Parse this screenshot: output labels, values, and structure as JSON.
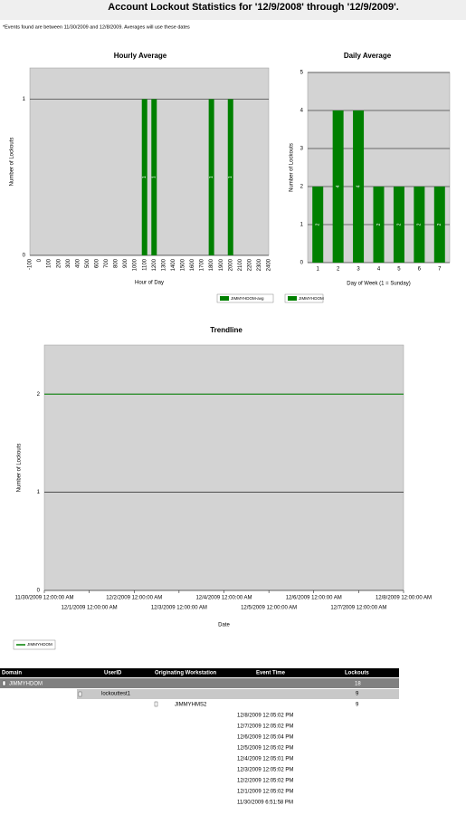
{
  "header": {
    "title": "Account Lockout Statistics for '12/9/2008' through '12/9/2009'.",
    "note": "*Events found are between 11/30/2009 and 12/8/2009. Averages will use these dates"
  },
  "chart_data": [
    {
      "type": "bar",
      "title": "Hourly Average",
      "x": [
        1100,
        1200,
        1800,
        2000
      ],
      "series": [
        {
          "name": "JIMMYHDOM-avg",
          "color": "#008000",
          "values": [
            1,
            1,
            1,
            1
          ]
        }
      ],
      "xlim": [
        -100,
        2400
      ],
      "xticks": [
        -100,
        0,
        100,
        200,
        300,
        400,
        500,
        600,
        700,
        800,
        900,
        1000,
        1100,
        1200,
        1300,
        1400,
        1500,
        1600,
        1700,
        1800,
        1900,
        2000,
        2100,
        2200,
        2300,
        2400
      ],
      "ylim": [
        0,
        1.2
      ],
      "yticks": [
        0,
        1
      ],
      "xlabel": "Hour of Day",
      "ylabel": "Number of Lockouts",
      "grid": true
    },
    {
      "type": "bar",
      "title": "Daily Average",
      "categories": [
        "1",
        "2",
        "3",
        "4",
        "5",
        "6",
        "7"
      ],
      "series": [
        {
          "name": "JIMMYHDOM",
          "color": "#008000",
          "values": [
            2,
            4,
            4,
            2,
            2,
            2,
            2
          ]
        }
      ],
      "ylim": [
        0,
        5
      ],
      "yticks": [
        0,
        1,
        2,
        3,
        4,
        5
      ],
      "xlabel": "Day of Week (1 = Sunday)",
      "ylabel": "Number of Lockouts",
      "grid": true
    },
    {
      "type": "line",
      "title": "Trendline",
      "categories": [
        "11/30/2009 12:00:00 AM",
        "12/1/2009 12:00:00 AM",
        "12/2/2009 12:00:00 AM",
        "12/3/2009 12:00:00 AM",
        "12/4/2009 12:00:00 AM",
        "12/5/2009 12:00:00 AM",
        "12/6/2009 12:00:00 AM",
        "12/7/2009 12:00:00 AM",
        "12/8/2009 12:00:00 AM"
      ],
      "series": [
        {
          "name": "JIMMYHDOM",
          "color": "#008000",
          "values": [
            2,
            2,
            2,
            2,
            2,
            2,
            2,
            2,
            2
          ]
        }
      ],
      "ylim": [
        0,
        2.5
      ],
      "yticks": [
        0,
        1,
        2
      ],
      "xlabel": "Date",
      "ylabel": "Number of Lockouts",
      "grid": true
    }
  ],
  "table": {
    "columns": [
      "Domain",
      "UserID",
      "Originating Workstation",
      "Event Time",
      "Lockouts"
    ],
    "domain": {
      "name": "JIMMYHDOM",
      "lockouts": 18,
      "user": {
        "name": "lockouttest1",
        "lockouts": 9,
        "workstation": {
          "name": "JIMMYHMS2",
          "lockouts": 9,
          "events": [
            "12/8/2009 12:05:02 PM",
            "12/7/2009 12:05:02 PM",
            "12/6/2009 12:05:04 PM",
            "12/5/2009 12:05:02 PM",
            "12/4/2009 12:05:01 PM",
            "12/3/2009 12:05:02 PM",
            "12/2/2009 12:05:02 PM",
            "12/1/2009 12:05:02 PM",
            "11/30/2009 6:51:58 PM"
          ]
        }
      }
    }
  }
}
